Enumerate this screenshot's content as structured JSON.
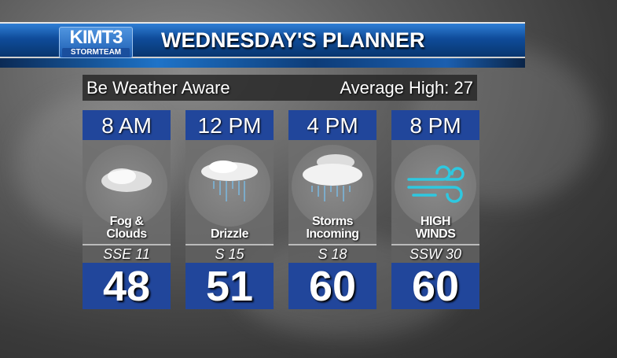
{
  "header": {
    "logo_main": "KIMT3",
    "logo_sub": "STORMTEAM",
    "title": "WEDNESDAY'S PLANNER"
  },
  "info": {
    "left": "Be Weather Aware",
    "right": "Average High: 27"
  },
  "forecast": [
    {
      "time": "8 AM",
      "condition": "Fog & Clouds",
      "icon": "fog-cloud-icon",
      "wind": "SSE 11",
      "temp": "48"
    },
    {
      "time": "12 PM",
      "condition": "Drizzle",
      "icon": "drizzle-icon",
      "wind": "S 15",
      "temp": "51"
    },
    {
      "time": "4 PM",
      "condition": "Storms Incoming",
      "icon": "thunderstorm-icon",
      "wind": "S 18",
      "temp": "60"
    },
    {
      "time": "8 PM",
      "condition": "HIGH WINDS",
      "icon": "wind-icon",
      "wind": "SSW 30",
      "temp": "60"
    }
  ],
  "colors": {
    "panel_blue": "#21469b",
    "wind_icon": "#2ec8e0"
  }
}
